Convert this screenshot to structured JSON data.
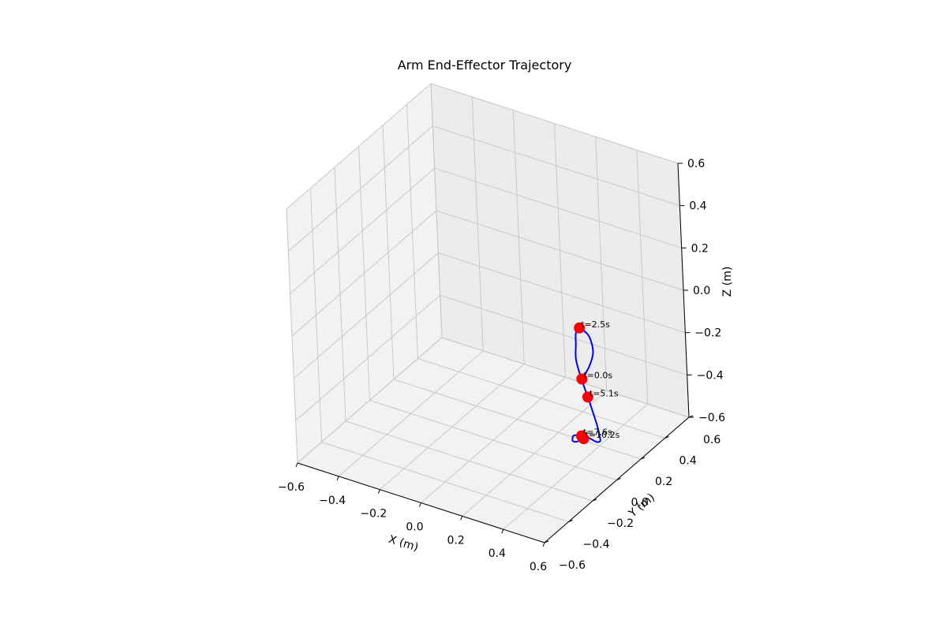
{
  "chart_data": {
    "type": "line3d",
    "title": "Arm End-Effector Trajectory",
    "xlabel": "X (m)",
    "ylabel": "Y (m)",
    "zlabel": "Z (m)",
    "xlim": [
      -0.6,
      0.6
    ],
    "ylim": [
      -0.6,
      0.6
    ],
    "zlim": [
      -0.6,
      0.6
    ],
    "xticks": [
      "−0.6",
      "−0.4",
      "−0.2",
      "0.0",
      "0.2",
      "0.4",
      "0.6"
    ],
    "yticks": [
      "−0.6",
      "−0.4",
      "−0.2",
      "0.0",
      "0.2",
      "0.4",
      "0.6"
    ],
    "zticks": [
      "−0.6",
      "−0.4",
      "−0.2",
      "0.0",
      "0.2",
      "0.4",
      "0.6"
    ],
    "grid": true,
    "pane_color": "#f2f2f2",
    "line_color": "#0000ff",
    "marker_color": "#ff0000",
    "trajectory": {
      "x": [
        0.45,
        0.47,
        0.48,
        0.46,
        0.44,
        0.43,
        0.43,
        0.44,
        0.45,
        0.48,
        0.5,
        0.51,
        0.51,
        0.5,
        0.49,
        0.47,
        0.45,
        0.43,
        0.41,
        0.41,
        0.42,
        0.44
      ],
      "y": [
        0.0,
        0.03,
        0.05,
        0.06,
        0.05,
        0.03,
        0.0,
        -0.02,
        -0.04,
        -0.05,
        -0.04,
        -0.02,
        0.01,
        0.04,
        0.06,
        0.06,
        0.04,
        0.01,
        -0.02,
        -0.03,
        -0.01,
        0.01
      ],
      "z": [
        -0.17,
        -0.12,
        -0.06,
        0.0,
        0.03,
        0.05,
        0.04,
        0.0,
        -0.06,
        -0.14,
        -0.22,
        -0.3,
        -0.38,
        -0.44,
        -0.48,
        -0.49,
        -0.47,
        -0.45,
        -0.44,
        -0.46,
        -0.47,
        -0.46
      ]
    },
    "markers": [
      {
        "label": "t=0.0s",
        "x": 0.45,
        "y": 0.0,
        "z": -0.17
      },
      {
        "label": "t=2.5s",
        "x": 0.43,
        "y": 0.03,
        "z": 0.05
      },
      {
        "label": "t=5.1s",
        "x": 0.5,
        "y": -0.04,
        "z": -0.22
      },
      {
        "label": "t=7.6s",
        "x": 0.43,
        "y": 0.01,
        "z": -0.45
      },
      {
        "label": "t=10.2s",
        "x": 0.44,
        "y": 0.01,
        "z": -0.46
      }
    ]
  }
}
